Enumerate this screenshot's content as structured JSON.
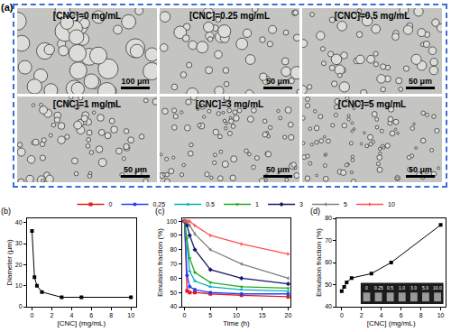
{
  "chart_data": [
    {
      "type": "line",
      "title": "(b)",
      "x_label": "[CNC] (mg/mL)",
      "y_label": "Diameter (μm)",
      "x": [
        0,
        0.25,
        0.5,
        1,
        3,
        5,
        10
      ],
      "values": [
        36,
        14,
        10,
        7,
        4.5,
        4.5,
        4.5
      ],
      "color": "#000000",
      "marker": "square",
      "xlim": [
        -0.5,
        10.5
      ],
      "xticks": [
        0,
        2,
        4,
        6,
        8,
        10
      ],
      "ylim": [
        0,
        42
      ],
      "yticks": [
        0,
        10,
        20,
        30,
        40
      ]
    },
    {
      "type": "line",
      "title": "(c)",
      "x_label": "Time (h)",
      "y_label": "Emulsion fraction (%)",
      "x": [
        0,
        0.5,
        1,
        2,
        5,
        11,
        20
      ],
      "series": [
        {
          "name": "0",
          "color": "#e41a1c",
          "marker": "square",
          "values": [
            100,
            51,
            50,
            50,
            49,
            48,
            47
          ]
        },
        {
          "name": "0.25",
          "color": "#1f3fff",
          "marker": "circle",
          "values": [
            100,
            62,
            54,
            52,
            50,
            49,
            49
          ]
        },
        {
          "name": "0.5",
          "color": "#00b0c0",
          "marker": "triangle-up",
          "values": [
            100,
            80,
            65,
            58,
            54,
            52,
            51
          ]
        },
        {
          "name": "1",
          "color": "#22aa22",
          "marker": "triangle-down",
          "values": [
            100,
            88,
            74,
            64,
            57,
            54,
            53
          ]
        },
        {
          "name": "3",
          "color": "#1a1a6e",
          "marker": "diamond",
          "values": [
            100,
            97,
            90,
            80,
            66,
            60,
            56
          ]
        },
        {
          "name": "5",
          "color": "#808080",
          "marker": "triangle-left",
          "values": [
            100,
            100,
            97,
            91,
            80,
            70,
            60
          ]
        },
        {
          "name": "10",
          "color": "#ff5050",
          "marker": "triangle-right",
          "values": [
            100,
            100,
            100,
            97,
            90,
            84,
            77
          ]
        }
      ],
      "xlim": [
        -0.5,
        20.5
      ],
      "xticks": [
        0,
        5,
        10,
        15,
        20
      ],
      "ylim": [
        40,
        102
      ],
      "yticks": [
        40,
        50,
        60,
        70,
        80,
        90,
        100
      ],
      "legend": "top"
    },
    {
      "type": "line",
      "title": "(d)",
      "x_label": "[CNC] (mg/mL)",
      "y_label": "Emulsion fraction (%)",
      "x": [
        0,
        0.25,
        0.5,
        1,
        3,
        5,
        10
      ],
      "values": [
        47,
        49,
        51,
        53,
        55,
        60,
        77
      ],
      "color": "#000000",
      "marker": "square",
      "xlim": [
        -0.5,
        10.5
      ],
      "xticks": [
        0,
        2,
        4,
        6,
        8,
        10
      ],
      "ylim": [
        40,
        80
      ],
      "yticks": [
        40,
        50,
        60,
        70,
        80
      ],
      "annotations": [
        "0",
        "0.25",
        "0.5",
        "1.0",
        "3.0",
        "5.0",
        "10.0"
      ]
    }
  ],
  "micrographs": {
    "label": "(a)",
    "panels": [
      {
        "label": "[CNC]=0 mg/mL",
        "scale_bar": "100 μm"
      },
      {
        "label": "[CNC]=0.25 mg/mL",
        "scale_bar": "50 μm"
      },
      {
        "label": "[CNC]=0.5 mg/mL",
        "scale_bar": "50 μm"
      },
      {
        "label": "[CNC]=1 mg/mL",
        "scale_bar": "50 μm"
      },
      {
        "label": "[CNC]=3 mg/mL",
        "scale_bar": "50 μm"
      },
      {
        "label": "[CNC]=5 mg/mL",
        "scale_bar": "50 μm"
      }
    ]
  }
}
